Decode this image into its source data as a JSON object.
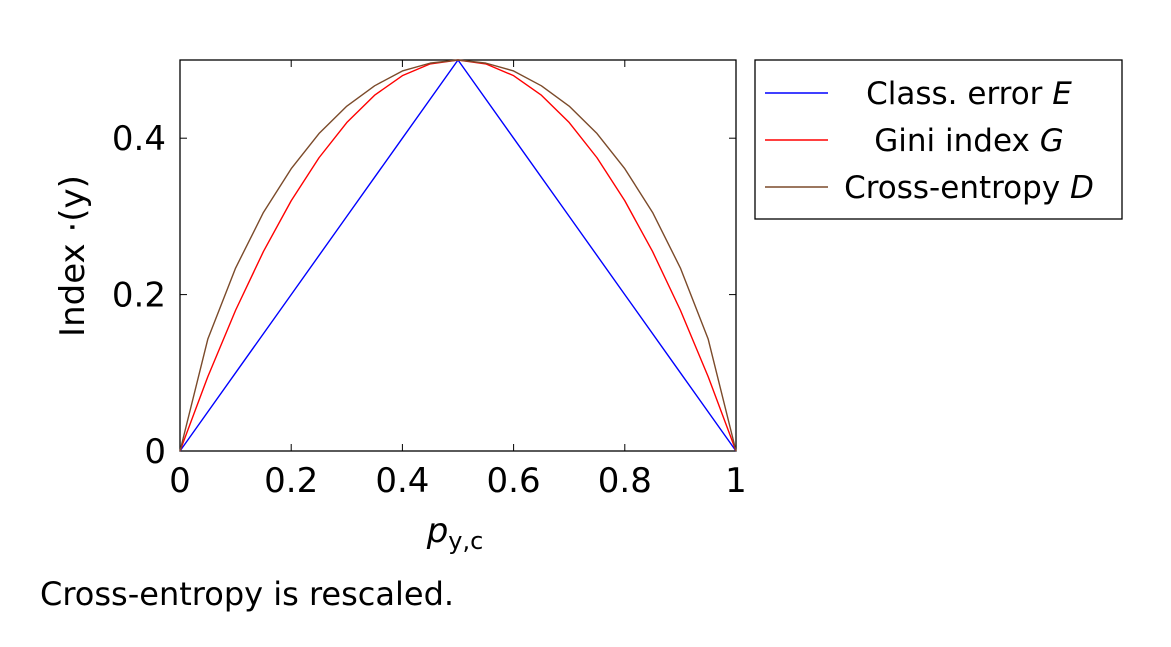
{
  "chart_data": {
    "type": "line",
    "xlabel": "p",
    "xlabel_subscript": "y,c",
    "ylabel": "Index ·(y)",
    "xlim": [
      0,
      1
    ],
    "ylim": [
      0,
      0.5
    ],
    "x_ticks": [
      "0",
      "0.2",
      "0.4",
      "0.6",
      "0.8",
      "1"
    ],
    "y_ticks": [
      "0",
      "0.2",
      "0.4"
    ],
    "grid": false,
    "legend_position": "outside-right-top",
    "series": [
      {
        "name": "Class. error",
        "symbol": "E",
        "color": "#0000ff",
        "x": [
          0,
          0.1,
          0.2,
          0.3,
          0.4,
          0.5,
          0.6,
          0.7,
          0.8,
          0.9,
          1
        ],
        "y": [
          0,
          0.1,
          0.2,
          0.3,
          0.4,
          0.5,
          0.4,
          0.3,
          0.2,
          0.1,
          0
        ]
      },
      {
        "name": "Gini index",
        "symbol": "G",
        "color": "#ff0000",
        "x": [
          0,
          0.05,
          0.1,
          0.15,
          0.2,
          0.25,
          0.3,
          0.35,
          0.4,
          0.45,
          0.5,
          0.55,
          0.6,
          0.65,
          0.7,
          0.75,
          0.8,
          0.85,
          0.9,
          0.95,
          1
        ],
        "y": [
          0,
          0.095,
          0.18,
          0.255,
          0.32,
          0.375,
          0.42,
          0.455,
          0.48,
          0.495,
          0.5,
          0.495,
          0.48,
          0.455,
          0.42,
          0.375,
          0.32,
          0.255,
          0.18,
          0.095,
          0
        ]
      },
      {
        "name": "Cross-entropy",
        "symbol": "D",
        "color": "#7b4a2a",
        "x": [
          0,
          0.05,
          0.1,
          0.15,
          0.2,
          0.25,
          0.3,
          0.35,
          0.4,
          0.45,
          0.5,
          0.55,
          0.6,
          0.65,
          0.7,
          0.75,
          0.8,
          0.85,
          0.9,
          0.95,
          1
        ],
        "y": [
          0,
          0.143,
          0.234,
          0.305,
          0.361,
          0.406,
          0.441,
          0.467,
          0.486,
          0.496,
          0.5,
          0.496,
          0.486,
          0.467,
          0.441,
          0.406,
          0.361,
          0.305,
          0.234,
          0.143,
          0
        ]
      }
    ]
  },
  "caption": "Cross-entropy is rescaled."
}
